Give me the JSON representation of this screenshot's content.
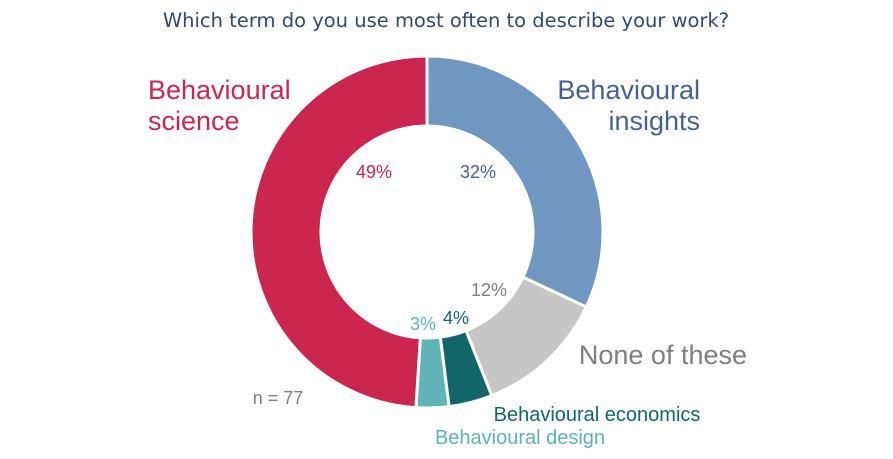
{
  "chart_data": {
    "type": "pie",
    "donut": true,
    "title": "Which term do you use most often to describe your work?",
    "note": "n = 77",
    "slices": [
      {
        "label": "Behavioural insights",
        "label_lines": [
          "Behavioural",
          "insights"
        ],
        "value": 32,
        "display": "32%",
        "color": "#7096c2",
        "label_color": "#46628e",
        "pct_color": "#46628e"
      },
      {
        "label": "None of these",
        "label_lines": [
          "None of these"
        ],
        "value": 12,
        "display": "12%",
        "color": "#c6c6c6",
        "label_color": "#7f7f7f",
        "pct_color": "#7f7f7f"
      },
      {
        "label": "Behavioural economics",
        "label_lines": [
          "Behavioural economics"
        ],
        "value": 4,
        "display": "4%",
        "color": "#12666a",
        "label_color": "#12666a",
        "pct_color": "#12666a"
      },
      {
        "label": "Behavioural design",
        "label_lines": [
          "Behavioural design"
        ],
        "value": 3,
        "display": "3%",
        "color": "#60b3b6",
        "label_color": "#60b3b6",
        "pct_color": "#60b3b6"
      },
      {
        "label": "Behavioural science",
        "label_lines": [
          "Behavioural",
          "science"
        ],
        "value": 49,
        "display": "49%",
        "color": "#cb2650",
        "label_color": "#cb2650",
        "pct_color": "#cb2650"
      }
    ]
  }
}
